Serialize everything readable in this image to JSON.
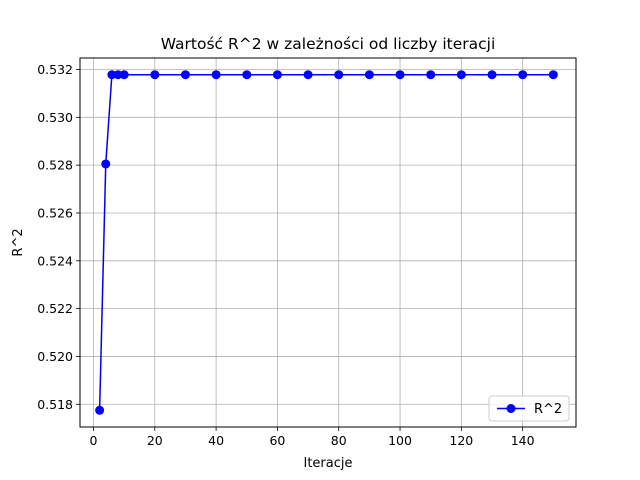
{
  "chart_data": {
    "type": "line",
    "title": "Wartość R^2 w zależności od liczby iteracji",
    "xlabel": "Iteracje",
    "ylabel": "R^2",
    "xlim": [
      -4.4,
      157.4
    ],
    "ylim": [
      0.51705,
      0.53248
    ],
    "xticks": [
      0,
      20,
      40,
      60,
      80,
      100,
      120,
      140
    ],
    "yticks": [
      0.518,
      0.52,
      0.522,
      0.524,
      0.526,
      0.528,
      0.53,
      0.532
    ],
    "ytick_labels": [
      "0.518",
      "0.520",
      "0.522",
      "0.524",
      "0.526",
      "0.528",
      "0.530",
      "0.532"
    ],
    "grid": true,
    "legend_position": "lower-right",
    "series": [
      {
        "name": "R^2",
        "color": "#0000ff",
        "marker": "circle",
        "x": [
          2,
          4,
          6,
          8,
          10,
          20,
          30,
          40,
          50,
          60,
          70,
          80,
          90,
          100,
          110,
          120,
          130,
          140,
          150
        ],
        "y": [
          0.51775,
          0.52805,
          0.53178,
          0.53178,
          0.53178,
          0.53178,
          0.53178,
          0.53178,
          0.53178,
          0.53178,
          0.53178,
          0.53178,
          0.53178,
          0.53178,
          0.53178,
          0.53178,
          0.53178,
          0.53178,
          0.53178
        ]
      }
    ]
  }
}
